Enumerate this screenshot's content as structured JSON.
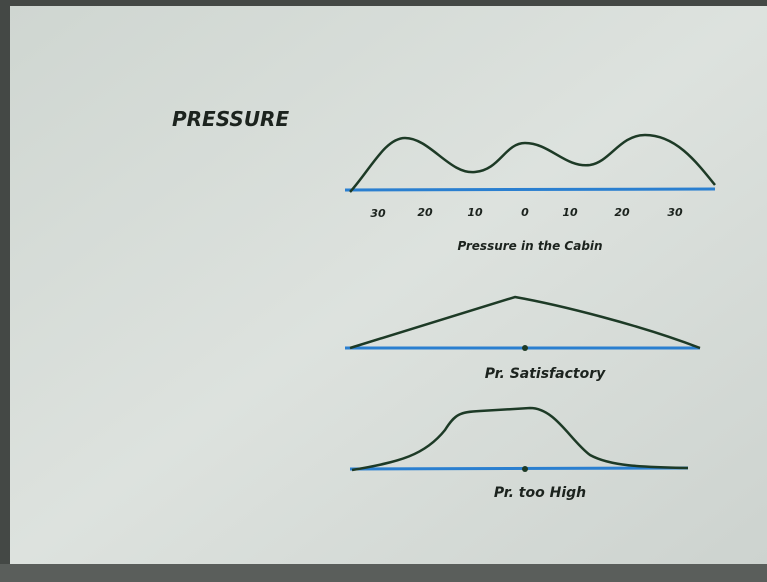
{
  "title": "PRESSURE",
  "graphs": [
    {
      "ticks": [
        "30",
        "20",
        "10",
        "0",
        "10",
        "20",
        "30"
      ],
      "caption": "Pressure in the Cabin"
    },
    {
      "caption": "Pr. Satisfactory"
    },
    {
      "caption": "Pr. too High"
    }
  ]
}
